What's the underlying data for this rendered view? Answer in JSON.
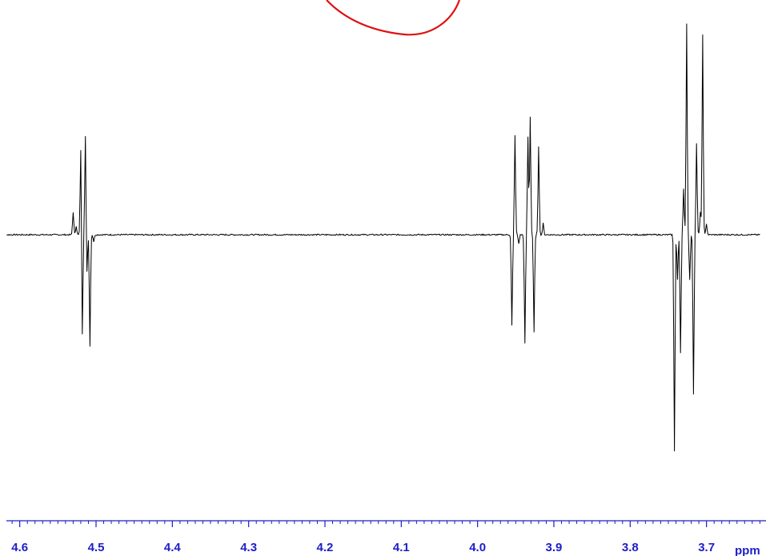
{
  "chart_data": {
    "type": "line",
    "title": "",
    "xlabel": "ppm",
    "ylabel": "",
    "x_direction": "decreasing",
    "xlim": [
      4.63,
      3.63
    ],
    "ylim": [
      -1.0,
      1.0
    ],
    "grid": false,
    "x_ticks": [
      "4.6",
      "4.5",
      "4.4",
      "4.3",
      "4.2",
      "4.1",
      "4.0",
      "3.9",
      "3.8",
      "3.7"
    ],
    "series": [
      {
        "color": "#000000",
        "baseline": 0.0,
        "peaks": [
          {
            "x": 4.53,
            "y": 0.1
          },
          {
            "x": 4.526,
            "y": 0.04
          },
          {
            "x": 4.52,
            "y": 0.39
          },
          {
            "x": 4.518,
            "y": -0.45
          },
          {
            "x": 4.514,
            "y": 0.44
          },
          {
            "x": 4.512,
            "y": -0.18
          },
          {
            "x": 4.508,
            "y": -0.49
          },
          {
            "x": 4.503,
            "y": -0.03
          },
          {
            "x": 3.955,
            "y": -0.4
          },
          {
            "x": 3.951,
            "y": 0.44
          },
          {
            "x": 3.946,
            "y": -0.04
          },
          {
            "x": 3.938,
            "y": -0.48
          },
          {
            "x": 3.934,
            "y": 0.43
          },
          {
            "x": 3.931,
            "y": 0.52
          },
          {
            "x": 3.926,
            "y": -0.43
          },
          {
            "x": 3.92,
            "y": 0.39
          },
          {
            "x": 3.914,
            "y": 0.05
          },
          {
            "x": 3.742,
            "y": -0.95
          },
          {
            "x": 3.738,
            "y": -0.2
          },
          {
            "x": 3.734,
            "y": -0.52
          },
          {
            "x": 3.73,
            "y": 0.2
          },
          {
            "x": 3.726,
            "y": 0.93
          },
          {
            "x": 3.722,
            "y": -0.2
          },
          {
            "x": 3.717,
            "y": -0.7
          },
          {
            "x": 3.713,
            "y": 0.4
          },
          {
            "x": 3.708,
            "y": 0.1
          },
          {
            "x": 3.705,
            "y": 0.88
          },
          {
            "x": 3.7,
            "y": 0.05
          }
        ]
      }
    ],
    "annotations": [
      {
        "type": "freehand-stroke",
        "color": "#e01010"
      }
    ]
  }
}
